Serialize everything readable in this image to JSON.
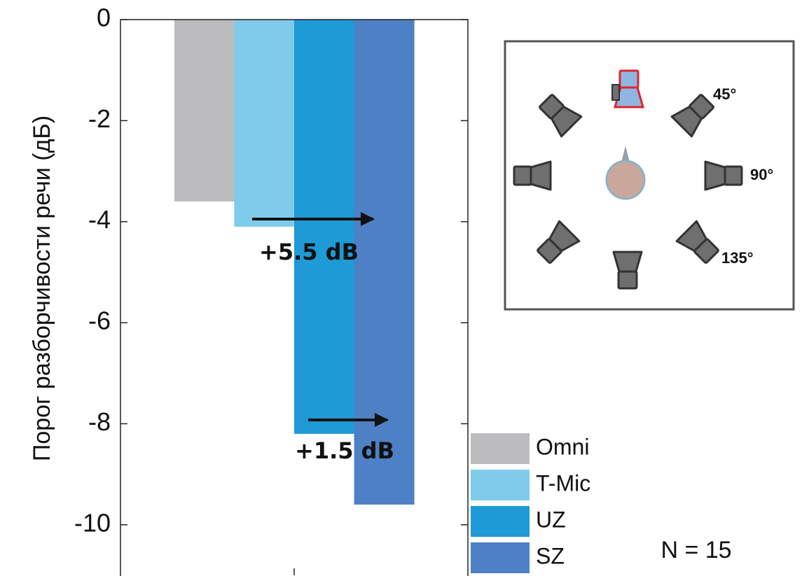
{
  "chart_data": {
    "type": "bar",
    "y_label": "Порог разборчивости речи (дБ)",
    "categories": [
      null
    ],
    "series": [
      {
        "name": "Omni",
        "color": "#bcbcbe",
        "values": [
          -3.6
        ]
      },
      {
        "name": "T-Mic",
        "color": "#7ecbea",
        "values": [
          -4.1
        ]
      },
      {
        "name": "UZ",
        "color": "#1e9ad6",
        "values": [
          -8.2
        ]
      },
      {
        "name": "SZ",
        "color": "#4d80c4",
        "values": [
          -9.6
        ]
      }
    ],
    "ylim": [
      -11,
      0
    ],
    "yticks": [
      0,
      -2,
      -4,
      -6,
      -8,
      -10
    ],
    "grid": false,
    "legend": "lower right",
    "annotations": [
      "+5.5 dB",
      "+1.5 dB"
    ],
    "note": "N = 15"
  },
  "inset": {
    "labels": [
      "45°",
      "90°",
      "135°"
    ]
  }
}
